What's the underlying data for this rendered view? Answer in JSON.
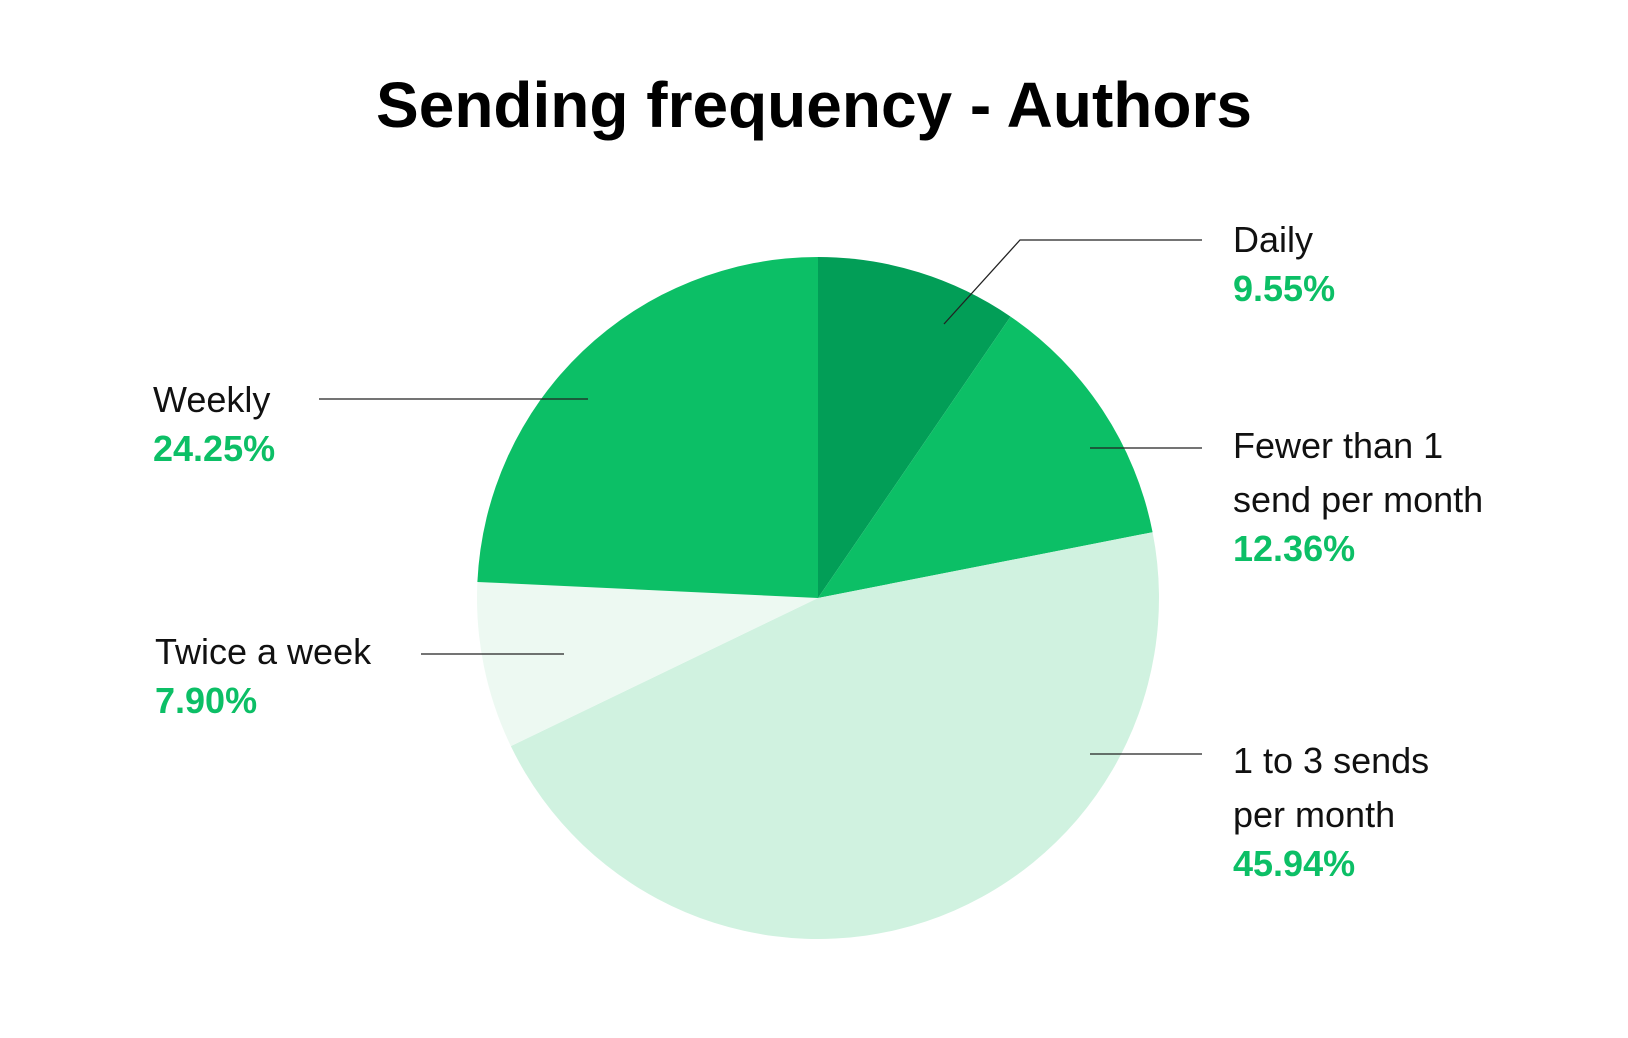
{
  "chart_data": {
    "type": "pie",
    "title": "Sending frequency -  Authors",
    "start_angle_deg": 0,
    "direction": "clockwise",
    "legend": "none",
    "label_color": "#0cbf66",
    "slices": [
      {
        "label_lines": [
          "Daily"
        ],
        "value": 9.55,
        "value_label": "9.55%",
        "color": "#029e57"
      },
      {
        "label_lines": [
          "Fewer than 1",
          "send per month"
        ],
        "value": 12.36,
        "value_label": "12.36%",
        "color": "#0cbf66"
      },
      {
        "label_lines": [
          "1 to 3 sends",
          "per month"
        ],
        "value": 45.94,
        "value_label": "45.94%",
        "color": "#d0f2e0"
      },
      {
        "label_lines": [
          "Twice a week"
        ],
        "value": 7.9,
        "value_label": "7.90%",
        "color": "#edf9f2"
      },
      {
        "label_lines": [
          "Weekly"
        ],
        "value": 24.25,
        "value_label": "24.25%",
        "color": "#0cbf66"
      }
    ]
  }
}
